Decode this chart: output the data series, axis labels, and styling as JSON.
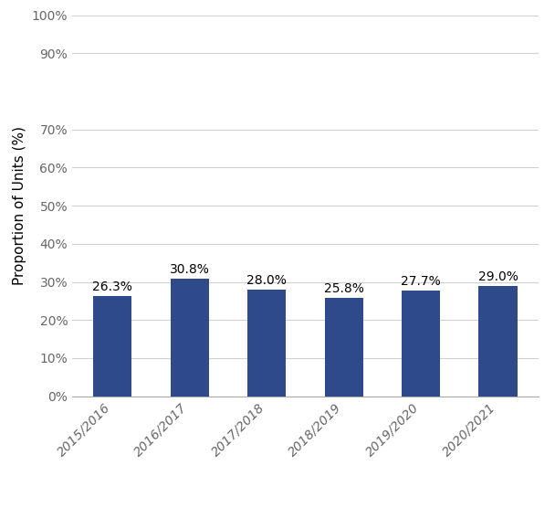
{
  "categories": [
    "2015/2016",
    "2016/2017",
    "2017/2018",
    "2018/2019",
    "2019/2020",
    "2020/2021"
  ],
  "values": [
    26.3,
    30.8,
    28.0,
    25.8,
    27.7,
    29.0
  ],
  "bar_color": "#2E4A8B",
  "ylabel": "Proportion of Units (%)",
  "ylim": [
    0,
    100
  ],
  "yticks": [
    0,
    10,
    20,
    30,
    40,
    50,
    60,
    70,
    90,
    100
  ],
  "bar_width": 0.5,
  "label_fontsize": 10,
  "tick_fontsize": 10,
  "ylabel_fontsize": 11,
  "grid_color": "#d0d0d0",
  "background_color": "#ffffff",
  "value_labels": [
    "26.3%",
    "30.8%",
    "28.0%",
    "25.8%",
    "27.7%",
    "29.0%"
  ]
}
